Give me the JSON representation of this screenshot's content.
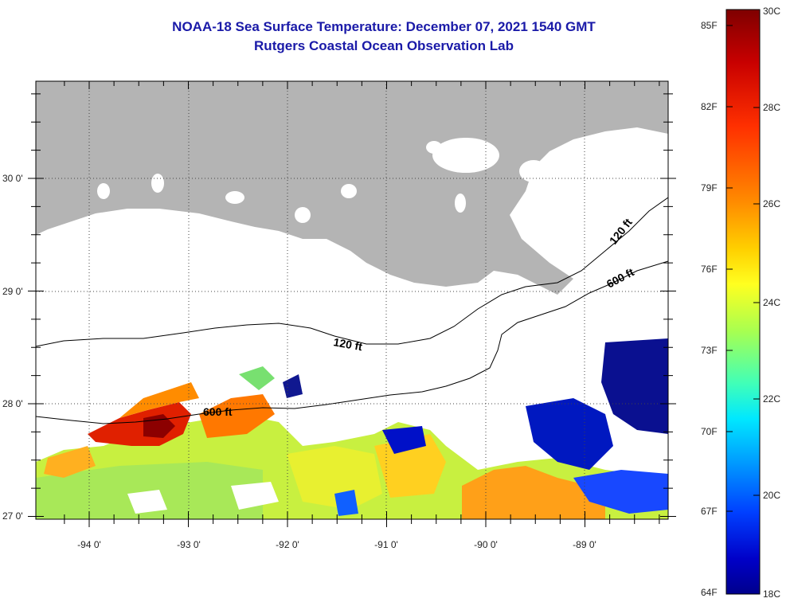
{
  "title": {
    "line1": "NOAA-18 Sea Surface Temperature:  December 07, 2021 1540 GMT",
    "line2": "Rutgers Coastal Ocean Observation Lab"
  },
  "map": {
    "lat_labels": [
      "30 0'",
      "29 0'",
      "28 0'",
      "27 0'"
    ],
    "lon_labels": [
      "-94 0'",
      "-93 0'",
      "-92 0'",
      "-91 0'",
      "-90 0'",
      "-89 0'"
    ],
    "contours": {
      "c120_east": "120 ft",
      "c600_east": "600 ft",
      "c120_mid": "120 ft",
      "c600_west": "600 ft"
    },
    "colors": {
      "land": "#b4b4b4",
      "background": "#ffffff",
      "contour": "#000000"
    }
  },
  "colorbar": {
    "fahrenheit_labels": [
      "85F",
      "82F",
      "79F",
      "76F",
      "73F",
      "70F",
      "67F",
      "64F"
    ],
    "celsius_labels": [
      "30C",
      "28C",
      "26C",
      "24C",
      "22C",
      "20C",
      "18C"
    ],
    "colors_top_to_bottom": [
      "#7f0000",
      "#c80000",
      "#ff3000",
      "#ff8c00",
      "#ffd000",
      "#ffff20",
      "#a8ff50",
      "#40ffb8",
      "#00e8ff",
      "#00a0ff",
      "#0040ff",
      "#0000c8",
      "#00008c"
    ]
  }
}
